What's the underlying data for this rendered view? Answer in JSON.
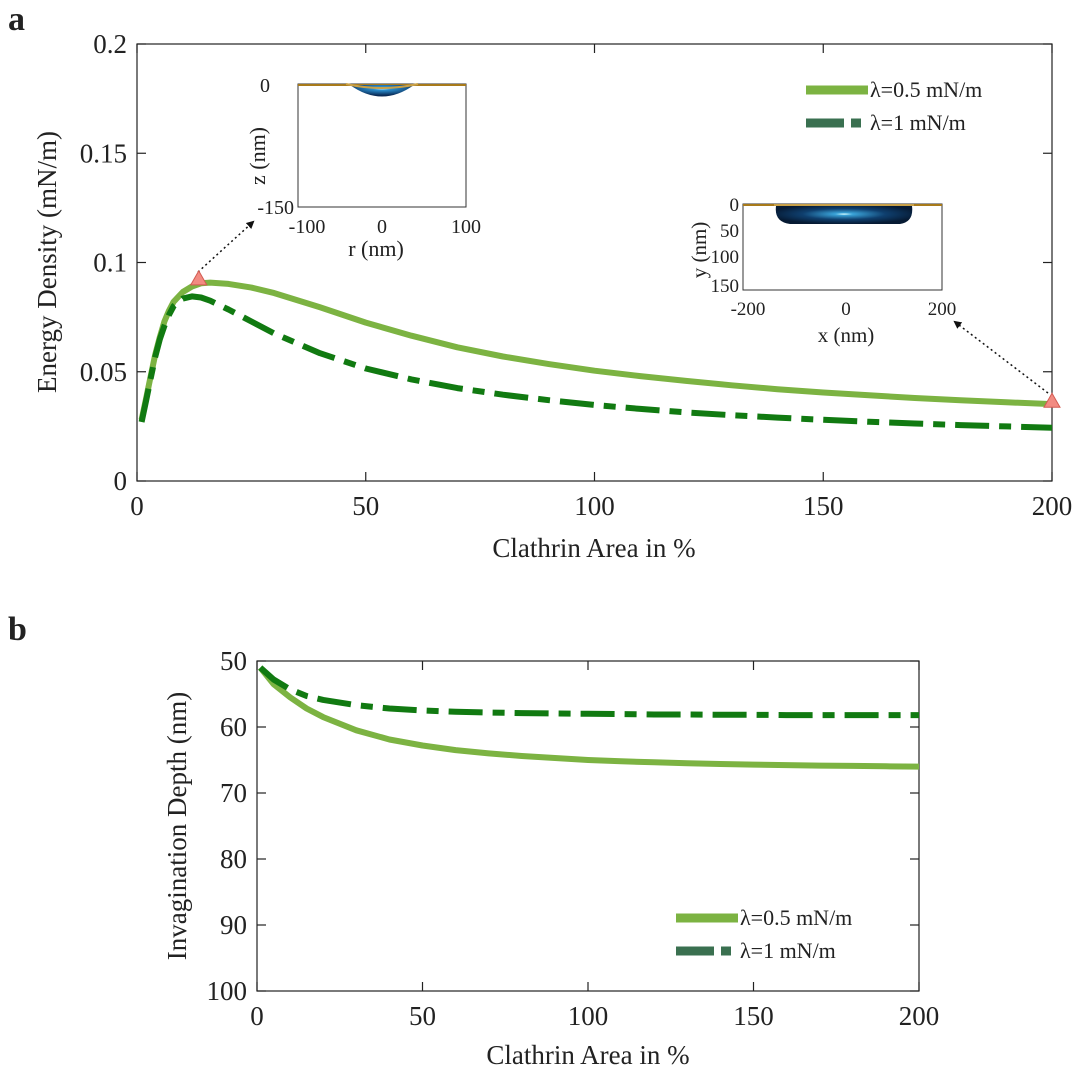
{
  "panels": {
    "a": {
      "letter": "a"
    },
    "b": {
      "letter": "b"
    }
  },
  "colors": {
    "light_green": "#7cb342",
    "dark_green": "#117a11",
    "legend_dark": "#3a7050",
    "marker": "#f28b82",
    "axis": "#222222"
  },
  "chart_data": [
    {
      "id": "a",
      "type": "line",
      "xlabel": "Clathrin Area in %",
      "ylabel": "Energy Density (mN/m)",
      "xlim": [
        0,
        200
      ],
      "ylim": [
        0,
        0.2
      ],
      "xticks": [
        0,
        50,
        100,
        150,
        200
      ],
      "xtick_labels": [
        "0",
        "50",
        "100",
        "150",
        "200"
      ],
      "yticks": [
        0,
        0.05,
        0.1,
        0.15,
        0.2
      ],
      "ytick_labels": [
        "0",
        "0.05",
        "0.1",
        "0.15",
        "0.2"
      ],
      "legend_position": "top-right",
      "series": [
        {
          "name": "λ=0.5 mN/m",
          "style": "solid",
          "color": "#7cb342",
          "x": [
            1,
            2,
            3,
            4,
            5,
            6,
            7,
            8,
            10,
            12,
            14,
            16,
            20,
            25,
            30,
            40,
            50,
            60,
            70,
            80,
            90,
            100,
            110,
            120,
            130,
            140,
            150,
            160,
            170,
            180,
            190,
            200
          ],
          "y": [
            0.028,
            0.038,
            0.048,
            0.058,
            0.066,
            0.073,
            0.078,
            0.082,
            0.0865,
            0.089,
            0.0905,
            0.0908,
            0.0902,
            0.0885,
            0.086,
            0.0795,
            0.0725,
            0.0665,
            0.0612,
            0.057,
            0.0535,
            0.0505,
            0.048,
            0.0458,
            0.0438,
            0.042,
            0.0405,
            0.0392,
            0.038,
            0.037,
            0.036,
            0.0352
          ]
        },
        {
          "name": "λ=1 mN/m",
          "style": "dash-dot",
          "color": "#117a11",
          "x": [
            1,
            2,
            3,
            4,
            5,
            6,
            7,
            8,
            10,
            12,
            14,
            16,
            20,
            25,
            30,
            40,
            50,
            60,
            70,
            80,
            90,
            100,
            110,
            120,
            130,
            140,
            150,
            160,
            170,
            180,
            190,
            200
          ],
          "y": [
            0.027,
            0.037,
            0.047,
            0.057,
            0.065,
            0.071,
            0.076,
            0.08,
            0.0835,
            0.0845,
            0.084,
            0.0825,
            0.0785,
            0.073,
            0.0675,
            0.0585,
            0.0515,
            0.0465,
            0.0425,
            0.0395,
            0.037,
            0.0348,
            0.033,
            0.0314,
            0.0301,
            0.029,
            0.028,
            0.0271,
            0.0263,
            0.0256,
            0.025,
            0.0244
          ]
        }
      ],
      "markers": [
        {
          "x": 13.5,
          "y": 0.0925
        },
        {
          "x": 200,
          "y": 0.0365
        }
      ],
      "insets": [
        {
          "id": "a-inset-1",
          "xlabel": "r (nm)",
          "ylabel": "z (nm)",
          "xtick_labels": [
            "-100",
            "0",
            "100"
          ],
          "ytick_labels": [
            "0",
            "-150"
          ]
        },
        {
          "id": "a-inset-2",
          "xlabel": "x (nm)",
          "ylabel": "y (nm)",
          "xtick_labels": [
            "-200",
            "0",
            "200"
          ],
          "ytick_labels": [
            "0",
            "50",
            "100",
            "150"
          ]
        }
      ]
    },
    {
      "id": "b",
      "type": "line",
      "xlabel": "Clathrin Area in %",
      "ylabel": "Invagination Depth (nm)",
      "xlim": [
        0,
        200
      ],
      "ylim": [
        50,
        100
      ],
      "y_reversed": true,
      "xticks": [
        0,
        50,
        100,
        150,
        200
      ],
      "xtick_labels": [
        "0",
        "50",
        "100",
        "150",
        "200"
      ],
      "yticks": [
        50,
        60,
        70,
        80,
        90,
        100
      ],
      "ytick_labels": [
        "50",
        "60",
        "70",
        "80",
        "90",
        "100"
      ],
      "legend_position": "bottom-right",
      "series": [
        {
          "name": "λ=0.5 mN/m",
          "style": "solid",
          "color": "#7cb342",
          "x": [
            1,
            5,
            10,
            15,
            20,
            30,
            40,
            50,
            60,
            70,
            80,
            90,
            100,
            110,
            120,
            130,
            140,
            150,
            160,
            170,
            180,
            190,
            200
          ],
          "y": [
            51,
            53.5,
            55.5,
            57.2,
            58.5,
            60.5,
            61.9,
            62.8,
            63.5,
            64,
            64.4,
            64.7,
            65,
            65.2,
            65.35,
            65.5,
            65.6,
            65.7,
            65.78,
            65.85,
            65.9,
            65.95,
            66
          ]
        },
        {
          "name": "λ=1 mN/m",
          "style": "dash-dot",
          "color": "#117a11",
          "x": [
            1,
            5,
            10,
            15,
            20,
            30,
            40,
            50,
            60,
            70,
            80,
            90,
            100,
            110,
            120,
            130,
            140,
            150,
            160,
            170,
            180,
            190,
            200
          ],
          "y": [
            51,
            52.8,
            54.3,
            55.3,
            55.9,
            56.7,
            57.2,
            57.5,
            57.7,
            57.8,
            57.9,
            57.95,
            58,
            58.05,
            58.1,
            58.1,
            58.15,
            58.15,
            58.2,
            58.2,
            58.2,
            58.2,
            58.2
          ]
        }
      ]
    }
  ]
}
